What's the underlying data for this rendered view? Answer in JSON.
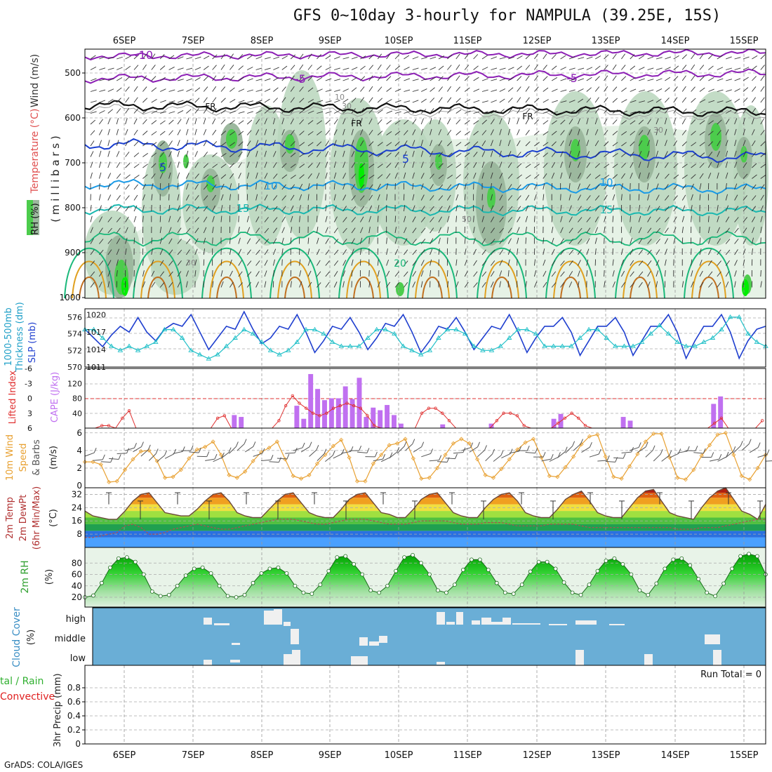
{
  "header": {
    "title": "GFS 0~10day 3-hourly for NAMPULA (39.25E, 15S)",
    "footer": "GrADS: COLA/IGES",
    "run_total": "Run Total = 0"
  },
  "days": [
    "6SEP",
    "7SEP",
    "8SEP",
    "9SEP",
    "10SEP",
    "11SEP",
    "12SEP",
    "13SEP",
    "14SEP",
    "15SEP"
  ],
  "colors": {
    "rh_light": "#e6f2e6",
    "rh_mid": "#b8d6bc",
    "rh_dark": "#9cb89e",
    "rh_green": "#4ccc4c",
    "rh_bright": "#00ee00",
    "temp_violet": "#8c1fb5",
    "temp_blue": "#1a3fcf",
    "temp_sky": "#1a9ae6",
    "temp_cyan": "#1ab8b0",
    "temp_teal": "#1ab87a",
    "temp_orange": "#e0a020",
    "freezing": "#000000",
    "slp": "#1f3fcf",
    "thickness": "#20c0c8",
    "cape": "#c070f0",
    "lifted": "#e03030",
    "wind_speed": "#e8a030",
    "barb": "#555555",
    "cloud_bg": "#6aaed6",
    "cloud_fill": "#f0f0f0",
    "precip_conv": "#e02020",
    "precip_total": "#30b030"
  },
  "panels": {
    "profile": {
      "ylabel_wind": "Wind (m/s)",
      "ylabel_temp": "Temperature (°C)",
      "ylabel_rh": "RH (%)",
      "ylabel_units": "( m i l l i b a r s )",
      "yticks": [
        "500",
        "600",
        "700",
        "800",
        "900",
        "1000"
      ],
      "contour_labels": [
        "-10",
        "-5",
        "-5",
        "FR",
        "FR",
        "FR",
        "5",
        "5",
        "10",
        "10",
        "15",
        "15",
        "20",
        "30",
        "30",
        "50",
        "10",
        "30"
      ]
    },
    "thick_slp": {
      "ylabel1": "1000-500mb",
      "ylabel2": "Thickness (dm)",
      "ylabel3": "SLP (mb)",
      "left_ticks": [
        "576",
        "574",
        "572",
        "570"
      ],
      "right_ticks": [
        "1020",
        "1017",
        "1014",
        "1011"
      ]
    },
    "cape": {
      "ylabel1": "Lifted Index",
      "ylabel2": "CAPE (J/kg)",
      "left_ticks": [
        "-6",
        "-3",
        "0",
        "3",
        "6"
      ],
      "right_ticks": [
        "120",
        "80",
        "40"
      ]
    },
    "wind10": {
      "ylabel1": "10m Wind",
      "ylabel2": "Speed",
      "ylabel3": "& Barbs",
      "ylabel4": "(m/s)",
      "ticks": [
        "6",
        "4",
        "2",
        "0"
      ]
    },
    "temp2m": {
      "ylabel1": "2m Temp",
      "ylabel2": "2m DewPt",
      "ylabel3": "(6hr Min/Max)",
      "ylabel4": "(°C)",
      "ticks": [
        "32",
        "24",
        "16",
        "8"
      ]
    },
    "rh2m": {
      "ylabel1": "2m RH",
      "ylabel2": "(%)",
      "ticks": [
        "80",
        "60",
        "40",
        "20"
      ]
    },
    "cloud": {
      "ylabel1": "Cloud Cover",
      "ylabel2": "(%)",
      "ticks": [
        "high",
        "middle",
        "low"
      ]
    },
    "precip": {
      "ylabel1": "tal / Rain",
      "ylabel2": "Convective",
      "ylabel3": "3hr Precip (mm)",
      "ticks": [
        "0.8",
        "0.6",
        "0.4",
        "0.2",
        "0"
      ]
    }
  },
  "chart_data": [
    {
      "type": "line",
      "name": "Sea level pressure",
      "ylabel": "SLP (mb)",
      "ylim": [
        1011,
        1021
      ],
      "values": [
        1017.5,
        1016,
        1014.5,
        1016.5,
        1018,
        1017,
        1019.5,
        1017,
        1015.5,
        1017.5,
        1018.5,
        1018,
        1020,
        1017,
        1014,
        1016,
        1018,
        1017.5,
        1020.5,
        1017.5,
        1015,
        1016,
        1018,
        1017.5,
        1020,
        1017,
        1013.5,
        1015.5,
        1018,
        1017.5,
        1019.5,
        1017,
        1014,
        1016,
        1018.5,
        1018,
        1020,
        1017,
        1013.5,
        1015.5,
        1018,
        1017.5,
        1019.5,
        1017,
        1014,
        1016,
        1018,
        1017.5,
        1020,
        1017,
        1013.5,
        1016,
        1018,
        1018,
        1019.5,
        1017,
        1013,
        1015.5,
        1018,
        1018,
        1019.5,
        1017,
        1013,
        1015.5,
        1018,
        1018,
        1020,
        1017,
        1012.5,
        1015.5,
        1018,
        1018,
        1020,
        1017,
        1012.5,
        1015.5,
        1017.5,
        1018
      ]
    },
    {
      "type": "line",
      "name": "1000-500mb thickness",
      "ylabel": "Thickness (dm)",
      "ylim": [
        570,
        577
      ],
      "values": [
        574.5,
        574.5,
        573.5,
        572.5,
        572,
        572.5,
        572,
        572.5,
        573,
        574.5,
        574.5,
        573.5,
        572,
        571.5,
        571,
        571.5,
        572.5,
        573.5,
        574.5,
        574,
        573,
        572,
        571.5,
        572,
        573,
        574.5,
        574.5,
        574,
        573,
        572.5,
        572.5,
        572.5,
        573.5,
        574.5,
        574.5,
        574,
        572.5,
        572,
        571.5,
        572,
        573.5,
        574.5,
        574.5,
        574,
        572.5,
        572,
        572,
        572.5,
        573.5,
        574.5,
        574.5,
        574,
        572.5,
        572.5,
        572.5,
        572.5,
        573.5,
        574.5,
        574.5,
        573.5,
        572.5,
        572.5,
        572.5,
        573,
        574,
        575,
        574,
        573,
        572.5,
        572.5,
        573,
        573.5,
        574.5,
        576,
        576,
        574,
        573,
        572.5
      ]
    },
    {
      "type": "bar",
      "name": "CAPE",
      "ylabel": "CAPE (J/kg)",
      "ylim": [
        0,
        160
      ],
      "values": [
        0,
        0,
        0,
        0,
        0,
        0,
        0,
        0,
        0,
        0,
        0,
        0,
        0,
        0,
        0,
        0,
        0,
        0,
        0,
        0,
        0,
        35,
        30,
        0,
        0,
        0,
        0,
        0,
        0,
        0,
        60,
        25,
        145,
        105,
        75,
        80,
        80,
        112,
        78,
        135,
        30,
        55,
        48,
        62,
        35,
        12,
        0,
        0,
        0,
        0,
        0,
        10,
        0,
        0,
        0,
        0,
        0,
        0,
        12,
        0,
        0,
        0,
        0,
        0,
        0,
        0,
        0,
        25,
        38,
        0,
        0,
        0,
        0,
        0,
        0,
        0,
        0,
        30,
        20,
        0,
        0,
        0,
        0,
        0,
        0,
        0,
        0,
        0,
        0,
        0,
        65,
        85,
        0,
        0,
        0,
        0,
        0,
        0
      ]
    },
    {
      "type": "line",
      "name": "Lifted index",
      "ylabel": "Lifted Index",
      "ylim": [
        6,
        -6
      ],
      "values": [
        6,
        6,
        5.5,
        5.5,
        6,
        4,
        2.5,
        6,
        6,
        6,
        6,
        6,
        6,
        6,
        6,
        6,
        6,
        6,
        6,
        4,
        3.5,
        6,
        6,
        6,
        6,
        6,
        6,
        6,
        4.5,
        1.5,
        -0.5,
        1,
        2,
        3,
        3.5,
        3,
        2,
        1.5,
        1,
        1.5,
        2,
        3.5,
        5.5,
        6,
        6,
        6,
        6,
        6,
        6,
        3,
        2,
        2,
        3,
        4.5,
        6,
        6,
        6,
        6,
        6,
        6,
        4.5,
        3,
        3,
        3.5,
        5.5,
        6,
        6,
        6,
        6,
        5,
        4,
        3,
        4,
        5.5,
        6,
        6,
        6,
        6,
        6,
        6,
        6,
        6,
        6,
        6,
        6,
        6,
        6,
        6,
        6,
        6,
        6,
        6,
        5,
        4,
        6,
        6,
        6,
        6,
        6,
        4.5
      ]
    },
    {
      "type": "line",
      "name": "10m wind speed",
      "ylabel": "Speed (m/s)",
      "ylim": [
        0,
        6.5
      ],
      "values": [
        2.7,
        2.7,
        2.4,
        0.4,
        0.5,
        1.8,
        3,
        3.9,
        4,
        2.8,
        0.9,
        1,
        1.8,
        3.1,
        4.1,
        4.4,
        5,
        3.5,
        1.2,
        0.9,
        1.6,
        2.8,
        3.8,
        4.3,
        5,
        3,
        1.1,
        0.8,
        1.2,
        2.5,
        3.5,
        4.5,
        5.2,
        3.2,
        0.5,
        0.5,
        2.5,
        3.5,
        4.6,
        4.8,
        5.3,
        3.1,
        0.8,
        0.9,
        2,
        3.5,
        4.8,
        5.3,
        4.8,
        3,
        1.2,
        0.9,
        1.9,
        3,
        4.1,
        4.9,
        5.3,
        3.2,
        1.1,
        1,
        2.1,
        3.3,
        4.7,
        5.6,
        5.8,
        3.3,
        1,
        0.8,
        2.2,
        3.6,
        5,
        5.9,
        5.9,
        3.2,
        0.9,
        0.7,
        1.8,
        3.4,
        4.6,
        5.8,
        6,
        3.5,
        1.1,
        0.7,
        2,
        3.5
      ]
    },
    {
      "type": "area",
      "name": "2m temperature",
      "ylabel": "(°C)",
      "ylim": [
        0,
        36
      ],
      "values": [
        22,
        19,
        18,
        17,
        17,
        22,
        28,
        32,
        33,
        27,
        21,
        20,
        19,
        19,
        23,
        28,
        32,
        33,
        28,
        21,
        19,
        18,
        18,
        23,
        28,
        32,
        33,
        27,
        21,
        19,
        18,
        18,
        23,
        29,
        32,
        33,
        27,
        21,
        20,
        18,
        18,
        23,
        29,
        32,
        33,
        27,
        21,
        19,
        18,
        18,
        24,
        29,
        32,
        33,
        28,
        21,
        19,
        18,
        18,
        23,
        29,
        32,
        34,
        28,
        21,
        19,
        18,
        18,
        24,
        30,
        34,
        35,
        28,
        21,
        19,
        18,
        17,
        24,
        30,
        34,
        36,
        29,
        22,
        20,
        17,
        26
      ]
    },
    {
      "type": "line",
      "name": "2m dew point",
      "ylabel": "(°C)",
      "ylim": [
        0,
        36
      ],
      "values": [
        6,
        6,
        7,
        8,
        9,
        13,
        14,
        12,
        8,
        8,
        9,
        11,
        12,
        13,
        14,
        13,
        12,
        11,
        11,
        12,
        13,
        14,
        15,
        16,
        17,
        17,
        17,
        16,
        15,
        14,
        14,
        15,
        16,
        17,
        17,
        17,
        16,
        15,
        14,
        14,
        14,
        15,
        16,
        16,
        16,
        16,
        15,
        14,
        14,
        14,
        15,
        15,
        15,
        14,
        13,
        13,
        13,
        13,
        14,
        14,
        14,
        14,
        13,
        12,
        12,
        12,
        12,
        12,
        12,
        12,
        12,
        12,
        12,
        12,
        11,
        11,
        11,
        12,
        12,
        12,
        13,
        14,
        15,
        16,
        17,
        17
      ]
    },
    {
      "type": "area",
      "name": "2m RH",
      "ylabel": "(%)",
      "ylim": [
        10,
        100
      ],
      "values": [
        20,
        23,
        45,
        72,
        88,
        90,
        82,
        60,
        30,
        22,
        24,
        40,
        58,
        70,
        72,
        62,
        40,
        22,
        20,
        24,
        45,
        62,
        70,
        72,
        62,
        40,
        28,
        26,
        42,
        66,
        90,
        92,
        78,
        60,
        32,
        28,
        40,
        66,
        90,
        94,
        80,
        60,
        32,
        28,
        42,
        68,
        86,
        86,
        68,
        45,
        28,
        26,
        42,
        65,
        82,
        82,
        70,
        46,
        28,
        24,
        42,
        66,
        84,
        88,
        78,
        60,
        32,
        24,
        44,
        70,
        86,
        88,
        76,
        52,
        28,
        22,
        44,
        70,
        92,
        96,
        92,
        60
      ]
    },
    {
      "type": "bar",
      "name": "Cloud cover",
      "categories": [
        "high",
        "middle",
        "low"
      ]
    },
    {
      "type": "bar",
      "name": "3hr precip",
      "ylabel": "3hr Precip (mm)",
      "ylim": [
        0,
        1
      ],
      "values": [
        0,
        0,
        0,
        0,
        0,
        0,
        0,
        0,
        0,
        0
      ]
    }
  ]
}
